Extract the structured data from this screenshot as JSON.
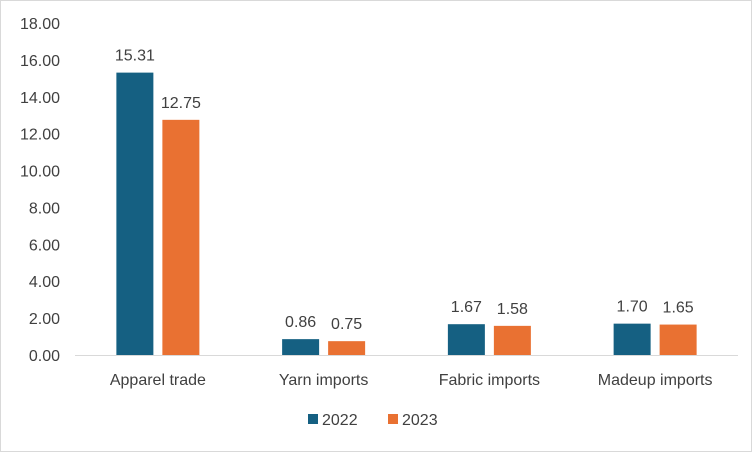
{
  "chart_data": {
    "type": "bar",
    "categories": [
      "Apparel trade",
      "Yarn imports",
      "Fabric imports",
      "Madeup imports"
    ],
    "series": [
      {
        "name": "2022",
        "values": [
          15.31,
          0.86,
          1.67,
          1.7
        ],
        "labels": [
          "15.31",
          "0.86",
          "1.67",
          "1.70"
        ],
        "color": "#156082"
      },
      {
        "name": "2023",
        "values": [
          12.75,
          0.75,
          1.58,
          1.65
        ],
        "labels": [
          "12.75",
          "0.75",
          "1.58",
          "1.65"
        ],
        "color": "#E97132"
      }
    ],
    "ylim": [
      0,
      18
    ],
    "yticks": [
      0,
      2,
      4,
      6,
      8,
      10,
      12,
      14,
      16,
      18
    ],
    "ytick_labels": [
      "0.00",
      "2.00",
      "4.00",
      "6.00",
      "8.00",
      "10.00",
      "12.00",
      "14.00",
      "16.00",
      "18.00"
    ],
    "title": "",
    "xlabel": "",
    "ylabel": "",
    "grid": false,
    "legend_position": "bottom"
  }
}
